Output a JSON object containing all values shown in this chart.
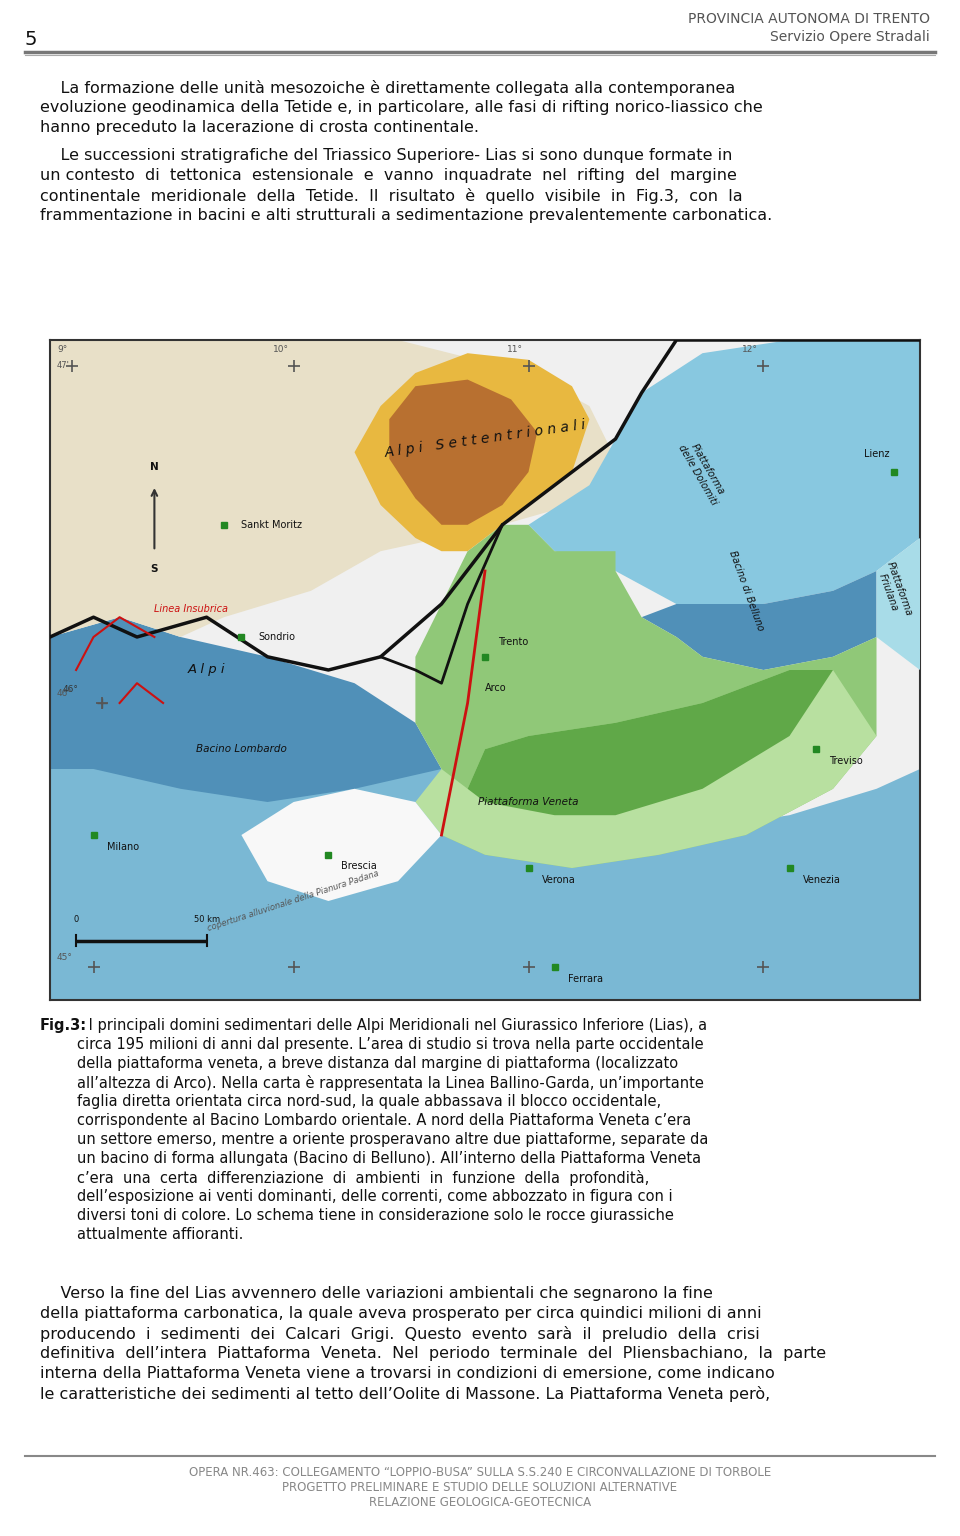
{
  "page_number": "5",
  "header_right_line1": "PROVINCIA AUTONOMA DI TRENTO",
  "header_right_line2": "Servizio Opere Stradali",
  "paragraph1_lines": [
    "    La formazione delle unità mesozoiche è direttamente collegata alla contemporanea",
    "evoluzione geodinamica della Tetide e, in particolare, alle fasi di rifting norico-liassico che",
    "hanno preceduto la lacerazione di crosta continentale."
  ],
  "paragraph2_lines": [
    "    Le successioni stratigrafiche del Triassico Superiore- Lias si sono dunque formate in",
    "un contesto  di  tettonica  estensionale  e  vanno  inquadrate  nel  rifting  del  margine",
    "continentale  meridionale  della  Tetide.  Il  risultato  è  quello  visibile  in  Fig.3,  con  la",
    "frammentazione in bacini e alti strutturali a sedimentazione prevalentemente carbonatica."
  ],
  "fig_caption_bold": "Fig.3:",
  "fig_caption_rest": " I principali domini sedimentari delle Alpi Meridionali nel Giurassico Inferiore (Lias), a",
  "fig_caption_lines": [
    "        circa 195 milioni di anni dal presente. L’area di studio si trova nella parte occidentale",
    "        della piattaforma veneta, a breve distanza dal margine di piattaforma (localizzato",
    "        all’altezza di Arco). Nella carta è rappresentata la Linea Ballino-Garda, un’importante",
    "        faglia diretta orientata circa nord-sud, la quale abbassava il blocco occidentale,",
    "        corrispondente al Bacino Lombardo orientale. A nord della Piattaforma Veneta c’era",
    "        un settore emerso, mentre a oriente prosperavano altre due piattaforme, separate da",
    "        un bacino di forma allungata (Bacino di Belluno). All’interno della Piattaforma Veneta",
    "        c’era  una  certa  differenziazione  di  ambienti  in  funzione  della  profondità,",
    "        dell’esposizione ai venti dominanti, delle correnti, come abbozzato in figura con i",
    "        diversi toni di colore. Lo schema tiene in considerazione solo le rocce giurassiche",
    "        attualmente affioranti."
  ],
  "paragraph3_lines": [
    "    Verso la fine del Lias avvennero delle variazioni ambientali che segnarono la fine",
    "della piattaforma carbonatica, la quale aveva prosperato per circa quindici milioni di anni",
    "producendo  i  sedimenti  dei  Calcari  Grigi.  Questo  evento  sarà  il  preludio  della  crisi",
    "definitiva  dell’intera  Piattaforma  Veneta.  Nel  periodo  terminale  del  Pliensbachiano,  la  parte",
    "interna della Piattaforma Veneta viene a trovarsi in condizioni di emersione, come indicano",
    "le caratteristiche dei sedimenti al tetto dell’Oolite di Massone. La Piattaforma Veneta però,"
  ],
  "footer_line1": "OPERA NR.463: COLLEGAMENTO “LOPPIO-BUSA” SULLA S.S.240 E CIRCONVALLAZIONE DI TORBOLE",
  "footer_line2": "PROGETTO PRELIMINARE E STUDIO DELLE SOLUZIONI ALTERNATIVE",
  "footer_line3": "RELAZIONE GEOLOGICA-GEOTECNICA",
  "bg_color": "#ffffff",
  "text_color": "#111111",
  "header_color": "#555555",
  "footer_color": "#888888",
  "line_color": "#888888",
  "font_size_body": 11.5,
  "font_size_header": 10,
  "font_size_footer": 8.5,
  "font_size_caption": 10.5,
  "font_size_page_num": 14
}
